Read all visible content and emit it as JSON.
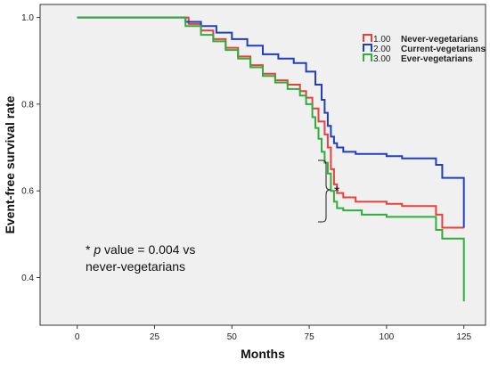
{
  "chart_data": {
    "type": "line",
    "step": true,
    "ylabel": "Event-free survival rate",
    "xlabel": "Months",
    "xlim": [
      -12,
      132
    ],
    "ylim": [
      0.29,
      1.03
    ],
    "x_ticks": [
      0,
      25,
      50,
      75,
      100,
      125
    ],
    "y_ticks": [
      0.4,
      0.6,
      0.8,
      1.0
    ],
    "y_tick_labels": [
      "0.4",
      "0.6",
      "0.8",
      "1.0"
    ],
    "plot_background": "#f0f0f0",
    "legend_position": "top-right",
    "series": [
      {
        "code": "1.00",
        "name": "Never-vegetarians",
        "color": "#e8413c",
        "x": [
          0,
          32,
          36,
          40,
          44,
          48,
          52,
          56,
          60,
          64,
          68,
          72,
          74,
          76,
          78,
          80,
          81,
          82,
          83,
          84,
          86,
          90,
          100,
          105,
          110,
          112,
          116,
          118,
          122,
          125
        ],
        "y": [
          1.0,
          1.0,
          0.985,
          0.97,
          0.95,
          0.93,
          0.91,
          0.89,
          0.87,
          0.855,
          0.845,
          0.83,
          0.815,
          0.79,
          0.76,
          0.73,
          0.7,
          0.65,
          0.615,
          0.595,
          0.585,
          0.575,
          0.57,
          0.565,
          0.565,
          0.565,
          0.545,
          0.515,
          0.515,
          0.515
        ]
      },
      {
        "code": "2.00",
        "name": "Current-vegetarians",
        "color": "#1f3fbf",
        "x": [
          0,
          30,
          35,
          40,
          45,
          50,
          55,
          60,
          65,
          70,
          74,
          77,
          79,
          80,
          81,
          82,
          83,
          84,
          86,
          90,
          100,
          105,
          110,
          115,
          116,
          118,
          122,
          125
        ],
        "y": [
          1.0,
          1.0,
          0.99,
          0.98,
          0.965,
          0.95,
          0.935,
          0.915,
          0.905,
          0.895,
          0.875,
          0.845,
          0.81,
          0.78,
          0.75,
          0.725,
          0.71,
          0.7,
          0.69,
          0.685,
          0.68,
          0.675,
          0.675,
          0.675,
          0.66,
          0.63,
          0.63,
          0.515
        ]
      },
      {
        "code": "3.00",
        "name": "Ever-vegetarians",
        "color": "#2fae3c",
        "x": [
          0,
          31,
          35,
          40,
          44,
          48,
          52,
          56,
          60,
          64,
          68,
          72,
          74,
          76,
          77,
          78,
          79,
          80,
          81,
          82,
          83,
          84,
          86,
          92,
          100,
          110,
          116,
          118,
          122,
          124,
          125
        ],
        "y": [
          1.0,
          1.0,
          0.98,
          0.96,
          0.945,
          0.925,
          0.905,
          0.885,
          0.865,
          0.85,
          0.835,
          0.82,
          0.8,
          0.77,
          0.745,
          0.72,
          0.69,
          0.665,
          0.64,
          0.6,
          0.575,
          0.56,
          0.555,
          0.545,
          0.54,
          0.54,
          0.51,
          0.49,
          0.49,
          0.49,
          0.345
        ]
      }
    ],
    "bracket_label": "*",
    "annotation": {
      "prefix": "* ",
      "italic": "p",
      "suffix": " value = 0.004 vs",
      "line2": "never-vegetarians"
    }
  }
}
